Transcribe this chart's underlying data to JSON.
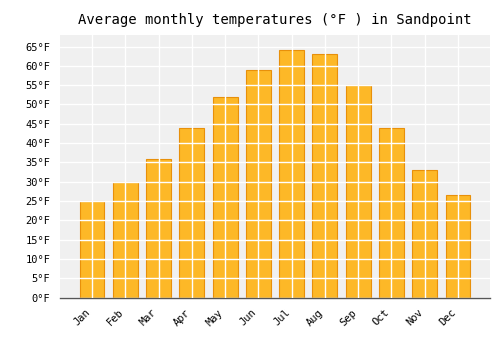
{
  "title": "Average monthly temperatures (°F ) in Sandpoint",
  "months": [
    "Jan",
    "Feb",
    "Mar",
    "Apr",
    "May",
    "Jun",
    "Jul",
    "Aug",
    "Sep",
    "Oct",
    "Nov",
    "Dec"
  ],
  "values": [
    25.0,
    30.0,
    36.0,
    44.0,
    52.0,
    59.0,
    64.0,
    63.0,
    55.0,
    44.0,
    33.0,
    26.5
  ],
  "bar_color": "#FDB827",
  "bar_edge_color": "#E8900A",
  "background_color": "#ffffff",
  "plot_bg_color": "#f0f0f0",
  "grid_color": "#ffffff",
  "ylim": [
    0,
    68
  ],
  "yticks": [
    0,
    5,
    10,
    15,
    20,
    25,
    30,
    35,
    40,
    45,
    50,
    55,
    60,
    65
  ],
  "title_fontsize": 10,
  "tick_fontsize": 7.5
}
